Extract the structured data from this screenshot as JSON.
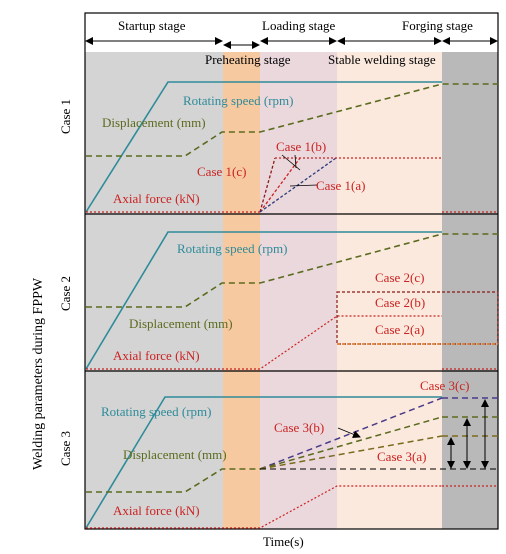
{
  "colors": {
    "startup": "#d4d4d4",
    "preheat": "#f7c9a1",
    "loading": "#ead8dc",
    "stable": "#fbe9dd",
    "forging": "#b9b9b9",
    "teal": "#2e8b9a",
    "olive": "#5a6b1e",
    "red": "#cc2222",
    "darkred": "#8b1a1a",
    "orange": "#e07820",
    "navy": "#2a3a7a",
    "purple": "#4a3a8a"
  },
  "figure": {
    "y_axis_label": "Welding parameters during FPPW",
    "x_axis_label": "Time(s)",
    "stages": {
      "startup": "Startup stage",
      "preheating": "Preheating stage",
      "loading": "Loading stage",
      "stable": "Stable welding stage",
      "forging": "Forging stage"
    }
  },
  "cases": [
    {
      "label": "Case 1",
      "rotating": "Rotating speed (rpm)",
      "displacement": "Displacement (mm)",
      "axial": "Axial force (kN)",
      "annotations": [
        "Case 1(b)",
        "Case 1(c)",
        "Case 1(a)"
      ]
    },
    {
      "label": "Case 2",
      "rotating": "Rotating speed (rpm)",
      "displacement": "Displacement (mm)",
      "axial": "Axial force (kN)",
      "annotations": [
        "Case 2(c)",
        "Case 2(b)",
        "Case 2(a)"
      ]
    },
    {
      "label": "Case 3",
      "rotating": "Rotating speed (rpm)",
      "displacement": "Displacement (mm)",
      "axial": "Axial force (kN)",
      "annotations": [
        "Case 3(c)",
        "Case 3(b)",
        "Case 3(a)"
      ]
    }
  ]
}
